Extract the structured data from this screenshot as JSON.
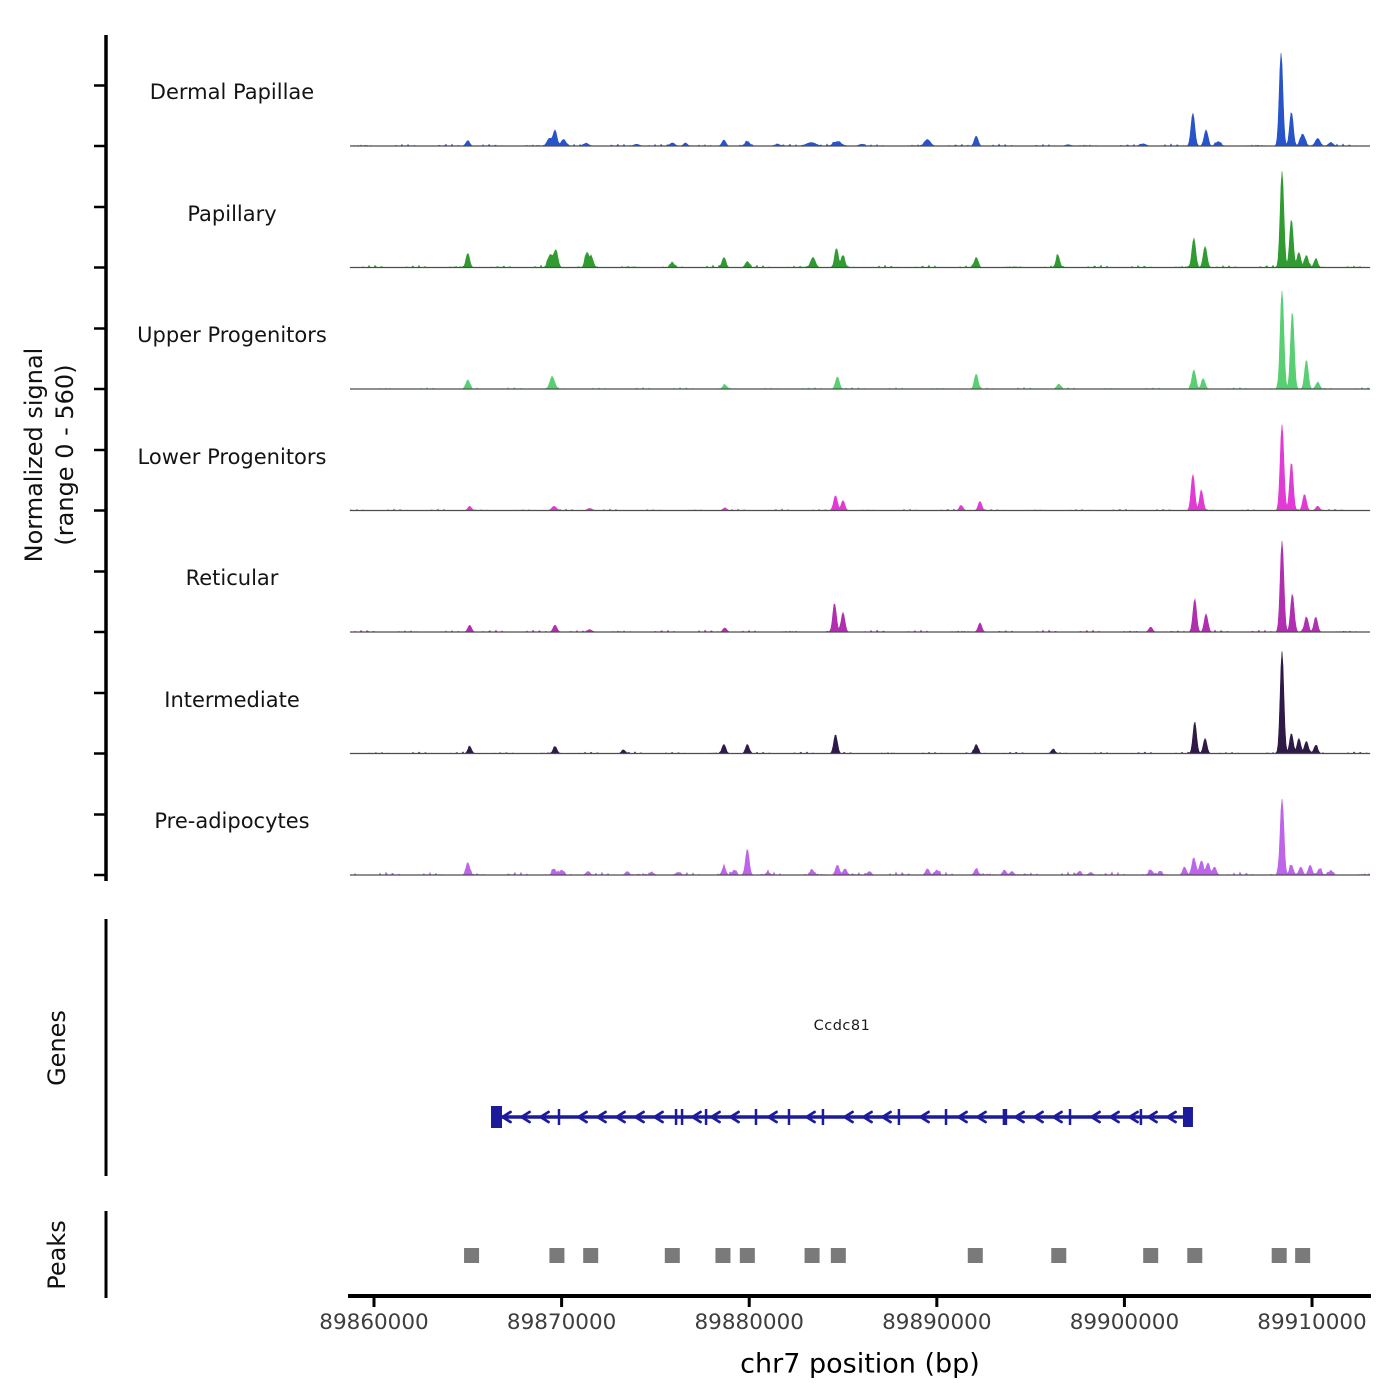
{
  "chart_data": {
    "type": "area",
    "title": "",
    "xlabel": "chr7 position (bp)",
    "ylabel": "Normalized signal (range 0 - 560)",
    "ylabel_lines": [
      "Normalized signal",
      "(range 0 - 560)"
    ],
    "y_range": [
      0,
      560
    ],
    "x_range_bp": [
      89858720,
      89913090
    ],
    "x_ticks": [
      {
        "bp": 89860000,
        "label": "89860000"
      },
      {
        "bp": 89870000,
        "label": "89870000"
      },
      {
        "bp": 89880000,
        "label": "89880000"
      },
      {
        "bp": 89890000,
        "label": "89890000"
      },
      {
        "bp": 89900000,
        "label": "89900000"
      },
      {
        "bp": 89910000,
        "label": "89910000"
      }
    ],
    "series": [
      {
        "name": "Dermal Papillae",
        "color": "#2754c8",
        "noise": 10,
        "peaks": [
          [
            89865000,
            25,
            200
          ],
          [
            89869350,
            35,
            250
          ],
          [
            89869650,
            72,
            200
          ],
          [
            89870100,
            30,
            250
          ],
          [
            89871300,
            12,
            280
          ],
          [
            89874000,
            8,
            280
          ],
          [
            89875900,
            14,
            250
          ],
          [
            89876600,
            14,
            200
          ],
          [
            89878650,
            28,
            200
          ],
          [
            89879900,
            20,
            250
          ],
          [
            89881500,
            8,
            280
          ],
          [
            89883300,
            16,
            500
          ],
          [
            89884700,
            20,
            400
          ],
          [
            89886000,
            8,
            280
          ],
          [
            89889500,
            30,
            300
          ],
          [
            89892100,
            46,
            200
          ],
          [
            89897000,
            6,
            280
          ],
          [
            89901000,
            10,
            300
          ],
          [
            89903650,
            152,
            200
          ],
          [
            89904350,
            74,
            200
          ],
          [
            89905000,
            20,
            250
          ],
          [
            89908350,
            430,
            150
          ],
          [
            89908900,
            157,
            150
          ],
          [
            89909500,
            55,
            250
          ],
          [
            89910300,
            35,
            250
          ],
          [
            89911000,
            15,
            250
          ]
        ]
      },
      {
        "name": "Papillary",
        "color": "#2f9b30",
        "noise": 12,
        "peaks": [
          [
            89865000,
            65,
            180
          ],
          [
            89869400,
            60,
            250
          ],
          [
            89869700,
            79,
            200
          ],
          [
            89871350,
            69,
            200
          ],
          [
            89871600,
            45,
            180
          ],
          [
            89875900,
            23,
            200
          ],
          [
            89878650,
            46,
            200
          ],
          [
            89879900,
            28,
            200
          ],
          [
            89883400,
            46,
            250
          ],
          [
            89884650,
            88,
            180
          ],
          [
            89885000,
            55,
            180
          ],
          [
            89892100,
            46,
            200
          ],
          [
            89896450,
            56,
            180
          ],
          [
            89903700,
            134,
            200
          ],
          [
            89904300,
            97,
            200
          ],
          [
            89908400,
            445,
            150
          ],
          [
            89908900,
            222,
            140
          ],
          [
            89909300,
            69,
            160
          ],
          [
            89909700,
            56,
            180
          ],
          [
            89910200,
            37,
            200
          ]
        ]
      },
      {
        "name": "Upper Progenitors",
        "color": "#58cf73",
        "noise": 8,
        "peaks": [
          [
            89865000,
            42,
            160
          ],
          [
            89869500,
            56,
            250
          ],
          [
            89878700,
            19,
            200
          ],
          [
            89884700,
            56,
            200
          ],
          [
            89892100,
            69,
            180
          ],
          [
            89896500,
            23,
            180
          ],
          [
            89903700,
            88,
            200
          ],
          [
            89904200,
            46,
            200
          ],
          [
            89908400,
            454,
            150
          ],
          [
            89908950,
            357,
            140
          ],
          [
            89909700,
            134,
            180
          ],
          [
            89910300,
            30,
            200
          ]
        ]
      },
      {
        "name": "Lower Progenitors",
        "color": "#e23ad4",
        "noise": 8,
        "peaks": [
          [
            89865100,
            19,
            180
          ],
          [
            89869600,
            19,
            250
          ],
          [
            89871500,
            10,
            250
          ],
          [
            89878700,
            12,
            200
          ],
          [
            89884600,
            69,
            200
          ],
          [
            89885000,
            46,
            180
          ],
          [
            89891300,
            23,
            180
          ],
          [
            89892300,
            42,
            180
          ],
          [
            89903650,
            167,
            180
          ],
          [
            89904100,
            93,
            180
          ],
          [
            89908400,
            398,
            150
          ],
          [
            89908900,
            218,
            140
          ],
          [
            89909600,
            74,
            200
          ],
          [
            89910300,
            20,
            200
          ]
        ]
      },
      {
        "name": "Reticular",
        "color": "#b02fb0",
        "noise": 10,
        "peaks": [
          [
            89865100,
            32,
            160
          ],
          [
            89869650,
            32,
            200
          ],
          [
            89871500,
            10,
            250
          ],
          [
            89878700,
            19,
            200
          ],
          [
            89884550,
            130,
            180
          ],
          [
            89885000,
            90,
            160
          ],
          [
            89892300,
            42,
            180
          ],
          [
            89901400,
            23,
            160
          ],
          [
            89903750,
            153,
            180
          ],
          [
            89904350,
            83,
            180
          ],
          [
            89908400,
            421,
            150
          ],
          [
            89908950,
            176,
            150
          ],
          [
            89909700,
            69,
            200
          ],
          [
            89910200,
            69,
            180
          ]
        ]
      },
      {
        "name": "Intermediate",
        "color": "#2e1947",
        "noise": 8,
        "peaks": [
          [
            89865100,
            32,
            160
          ],
          [
            89869650,
            32,
            200
          ],
          [
            89873300,
            16,
            200
          ],
          [
            89878650,
            42,
            180
          ],
          [
            89879900,
            42,
            180
          ],
          [
            89884600,
            88,
            180
          ],
          [
            89892100,
            42,
            180
          ],
          [
            89896200,
            19,
            180
          ],
          [
            89903750,
            144,
            180
          ],
          [
            89904300,
            69,
            180
          ],
          [
            89908400,
            472,
            150
          ],
          [
            89908900,
            93,
            150
          ],
          [
            89909300,
            69,
            160
          ],
          [
            89909700,
            56,
            200
          ],
          [
            89910200,
            37,
            200
          ]
        ]
      },
      {
        "name": "Pre-adipocytes",
        "color": "#bd64ea",
        "noise": 16,
        "peaks": [
          [
            89865000,
            56,
            160
          ],
          [
            89869600,
            28,
            200
          ],
          [
            89870000,
            23,
            180
          ],
          [
            89871400,
            16,
            200
          ],
          [
            89873500,
            16,
            200
          ],
          [
            89874800,
            12,
            200
          ],
          [
            89876200,
            12,
            200
          ],
          [
            89878650,
            37,
            180
          ],
          [
            89879200,
            23,
            180
          ],
          [
            89879900,
            120,
            160
          ],
          [
            89881000,
            12,
            200
          ],
          [
            89883350,
            23,
            200
          ],
          [
            89884700,
            46,
            200
          ],
          [
            89885100,
            28,
            180
          ],
          [
            89886400,
            16,
            200
          ],
          [
            89889500,
            28,
            200
          ],
          [
            89890000,
            23,
            180
          ],
          [
            89892100,
            28,
            180
          ],
          [
            89893600,
            23,
            180
          ],
          [
            89894000,
            16,
            180
          ],
          [
            89897600,
            16,
            180
          ],
          [
            89898200,
            12,
            180
          ],
          [
            89901400,
            23,
            180
          ],
          [
            89901900,
            16,
            180
          ],
          [
            89903200,
            37,
            180
          ],
          [
            89903700,
            79,
            200
          ],
          [
            89904100,
            65,
            180
          ],
          [
            89904450,
            55,
            180
          ],
          [
            89904800,
            37,
            180
          ],
          [
            89908400,
            352,
            150
          ],
          [
            89908900,
            46,
            160
          ],
          [
            89909400,
            37,
            180
          ],
          [
            89909900,
            46,
            180
          ],
          [
            89910400,
            28,
            200
          ],
          [
            89911000,
            20,
            200
          ]
        ]
      }
    ],
    "gene_track": {
      "section_label": "Genes",
      "gene_name": "Ccdc81",
      "strand": "-",
      "color": "#1b1b9c",
      "start_bp": 89866290,
      "end_bp": 89903600,
      "exons_bp": [
        [
          89869860,
          2.5
        ],
        [
          89876100,
          2.5
        ],
        [
          89876420,
          2.5
        ],
        [
          89877700,
          2.5
        ],
        [
          89880360,
          2.5
        ],
        [
          89882120,
          2.5
        ],
        [
          89883930,
          2.5
        ],
        [
          89887980,
          2.5
        ],
        [
          89890490,
          2.5
        ],
        [
          89893630,
          4.5
        ],
        [
          89897100,
          2.5
        ],
        [
          89900880,
          2.5
        ]
      ]
    },
    "peak_track": {
      "section_label": "Peaks",
      "color": "#7a7a7a",
      "interval_width_bp": 800,
      "intervals_bp": [
        89865200,
        89869750,
        89871550,
        89875900,
        89878600,
        89879900,
        89883350,
        89884750,
        89892050,
        89896500,
        89901400,
        89903750,
        89908250,
        89909500
      ]
    }
  }
}
